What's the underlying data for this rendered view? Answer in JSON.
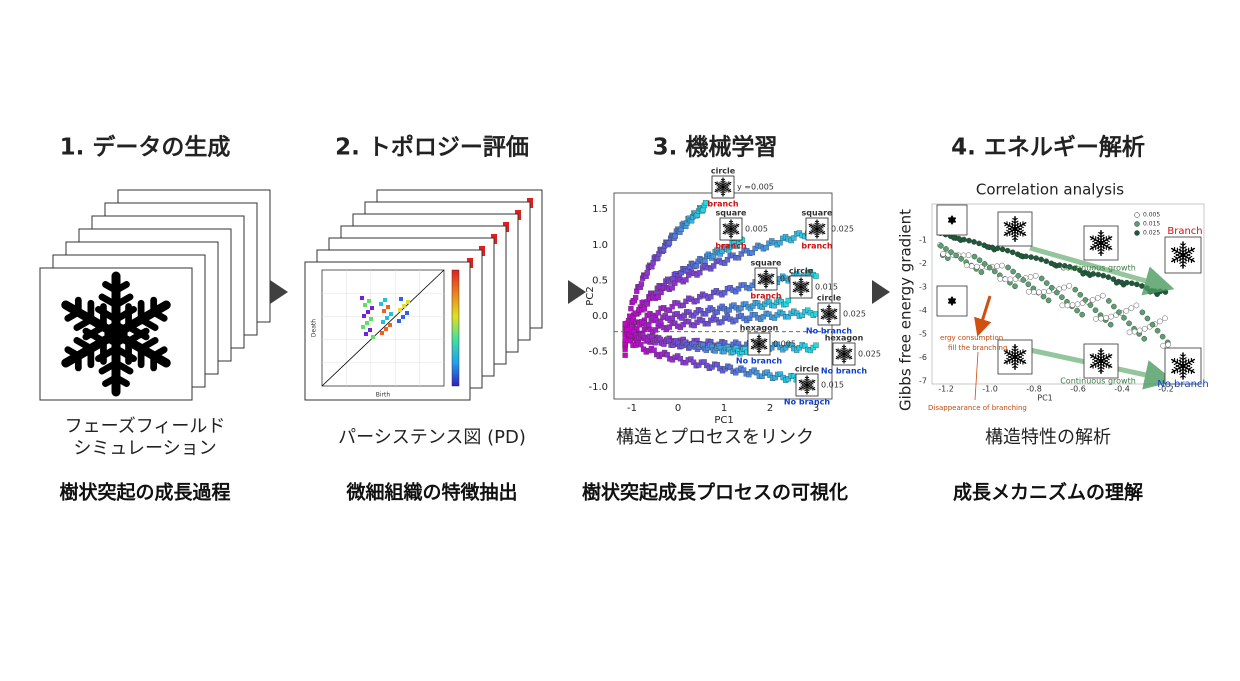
{
  "steps": [
    {
      "title": "1. データの生成",
      "caption": [
        "フェーズフィールド",
        "シミュレーション"
      ],
      "label": "樹状突起の成長過程"
    },
    {
      "title": "2. トポロジー評価",
      "caption": [
        "パーシステンス図 (PD)"
      ],
      "label": "微細組織の特徴抽出"
    },
    {
      "title": "3. 機械学習",
      "caption": [
        "構造とプロセスをリンク"
      ],
      "label": "樹状突起成長プロセスの可視化"
    },
    {
      "title": "4. エネルギー解析",
      "caption": [
        "構造特性の解析"
      ],
      "label": "成長メカニズムの理解"
    }
  ],
  "pd_figure": {
    "x_label": "Birth",
    "y_label": "Death"
  },
  "pca_figure": {
    "x_label": "PC1",
    "y_label": "PC2",
    "xticks": [
      "-1",
      "0",
      "1",
      "2",
      "3"
    ],
    "yticks": [
      "1.5",
      "1.0",
      "0.5",
      "0.0",
      "-0.5",
      "-1.0"
    ],
    "insets": [
      {
        "shape": "circle",
        "value": "y =0.005",
        "result": "branch"
      },
      {
        "shape": "square",
        "value": "0.005",
        "result": "branch"
      },
      {
        "shape": "square",
        "value": "0.025",
        "result": "branch"
      },
      {
        "shape": "square",
        "value": "0.015",
        "result": "branch"
      },
      {
        "shape": "circle",
        "value": "0.015"
      },
      {
        "shape": "circle",
        "value": "0.025",
        "result": "No branch"
      },
      {
        "shape": "hexagon",
        "value": "0.005",
        "result": "No branch"
      },
      {
        "shape": "hexagon",
        "value": "0.025",
        "result": "No branch"
      },
      {
        "shape": "circle",
        "value": "0.015",
        "result": "No branch"
      }
    ]
  },
  "energy_figure": {
    "title": "Correlation analysis",
    "y_label": "Gibbs free energy gradient",
    "x_label": "PC1",
    "xticks": [
      "-1.2",
      "-1.0",
      "-0.8",
      "-0.6",
      "-0.4",
      "-0.2"
    ],
    "yticks": [
      "-1",
      "-2",
      "-3",
      "-4",
      "-5",
      "-6",
      "-7"
    ],
    "legend": [
      "0.005",
      "0.015",
      "0.025"
    ],
    "branch": "Branch",
    "no_branch": "No branch",
    "growth_upper": "Continuous growth",
    "growth_lower": "Continuous growth",
    "consumption": [
      "ergy consumption",
      "fill the branching"
    ],
    "disappearance": "Disappearance of branching"
  }
}
